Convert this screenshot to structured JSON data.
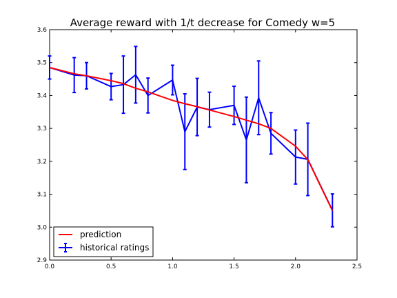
{
  "chart_data": {
    "type": "line",
    "title": "Average reward with 1/t decrease for Comedy w=5",
    "xlabel": "",
    "ylabel": "",
    "xlim": [
      0.0,
      2.5
    ],
    "ylim": [
      2.9,
      3.6
    ],
    "x_ticks": [
      "0.0",
      "0.5",
      "1.0",
      "1.5",
      "2.0",
      "2.5"
    ],
    "y_ticks": [
      "2.9",
      "3.0",
      "3.1",
      "3.2",
      "3.3",
      "3.4",
      "3.5",
      "3.6"
    ],
    "grid": false,
    "legend_position": "lower-left",
    "series": [
      {
        "name": "prediction",
        "kind": "line",
        "color": "#ff0000",
        "x": [
          0.0,
          0.2,
          0.3,
          0.5,
          0.6,
          0.7,
          0.8,
          1.0,
          1.1,
          1.2,
          1.3,
          1.5,
          1.6,
          1.7,
          1.8,
          2.0,
          2.1,
          2.3
        ],
        "y": [
          3.485,
          3.466,
          3.46,
          3.445,
          3.436,
          3.422,
          3.411,
          3.385,
          3.375,
          3.366,
          3.356,
          3.336,
          3.325,
          3.314,
          3.3,
          3.246,
          3.205,
          3.05
        ]
      },
      {
        "name": "historical ratings",
        "kind": "errorbar",
        "color": "#0000ff",
        "x": [
          0.0,
          0.2,
          0.3,
          0.5,
          0.6,
          0.7,
          0.8,
          1.0,
          1.1,
          1.2,
          1.3,
          1.5,
          1.6,
          1.7,
          1.8,
          2.0,
          2.1,
          2.3
        ],
        "y": [
          3.485,
          3.462,
          3.46,
          3.427,
          3.433,
          3.463,
          3.4,
          3.447,
          3.29,
          3.365,
          3.357,
          3.37,
          3.265,
          3.393,
          3.285,
          3.213,
          3.206,
          3.051
        ],
        "yerr": [
          0.035,
          0.053,
          0.04,
          0.04,
          0.087,
          0.086,
          0.053,
          0.045,
          0.115,
          0.087,
          0.053,
          0.058,
          0.13,
          0.112,
          0.063,
          0.082,
          0.11,
          0.05
        ]
      }
    ]
  }
}
